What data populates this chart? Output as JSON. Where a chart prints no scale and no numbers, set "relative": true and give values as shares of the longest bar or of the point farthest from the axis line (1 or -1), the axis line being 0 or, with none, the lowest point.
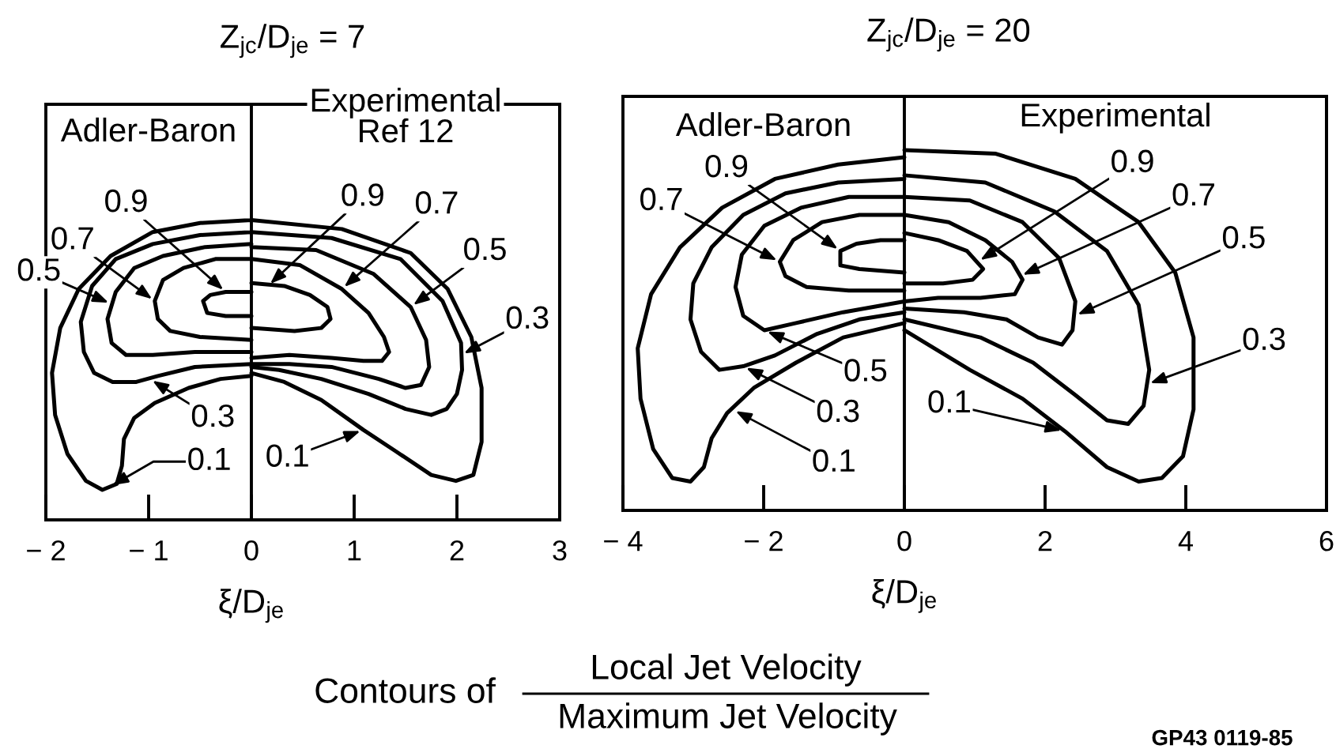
{
  "chart_data": [
    {
      "type": "line",
      "title": "Z$_{jc}$/D$_{je}$ = 7",
      "xlabel": "ξ/D$_{je}$",
      "relative": true,
      "tick_labels": "x",
      "xlim": [
        -2,
        3
      ],
      "xticks": [
        {
          "value": -2,
          "label": "− 2"
        },
        {
          "value": -1,
          "label": "− 1"
        },
        0,
        1,
        2,
        3
      ],
      "series": [
        {
          "color": "#000000",
          "x": [
            0,
            -0.25,
            -0.4,
            -0.47,
            -0.43,
            -0.25,
            0,
            null,
            0,
            0.42,
            0.68,
            0.77,
            0.74,
            0.57,
            0.32,
            0
          ],
          "values": [
            0.76,
            0.76,
            0.75,
            0.73,
            0.69,
            0.68,
            0.68,
            null,
            0.64,
            0.63,
            0.64,
            0.67,
            0.71,
            0.75,
            0.78,
            0.79
          ]
        },
        {
          "color": "#000000",
          "x": [
            0,
            -0.35,
            -0.66,
            -0.86,
            -0.94,
            -0.91,
            -0.79,
            -0.5,
            0,
            null,
            0,
            0.37,
            0.78,
            1.09,
            1.27,
            1.34,
            1.29,
            1.14,
            0.88,
            0.47,
            0
          ],
          "values": [
            0.87,
            0.87,
            0.84,
            0.8,
            0.73,
            0.67,
            0.63,
            0.61,
            0.6,
            null,
            0.54,
            0.55,
            0.54,
            0.53,
            0.53,
            0.56,
            0.61,
            0.69,
            0.77,
            0.85,
            0.87
          ]
        },
        {
          "color": "#000000",
          "x": [
            0,
            -0.45,
            -0.86,
            -1.14,
            -1.32,
            -1.4,
            -1.36,
            -1.22,
            -0.96,
            -0.55,
            0,
            null,
            0,
            0.37,
            0.78,
            1.24,
            1.5,
            1.65,
            1.73,
            1.7,
            1.55,
            1.19,
            0.63,
            0
          ],
          "values": [
            0.92,
            0.91,
            0.88,
            0.84,
            0.76,
            0.67,
            0.59,
            0.55,
            0.55,
            0.56,
            0.56,
            null,
            0.52,
            0.52,
            0.51,
            0.47,
            0.44,
            0.45,
            0.51,
            0.6,
            0.71,
            0.82,
            0.9,
            0.91
          ]
        },
        {
          "color": "#000000",
          "x": [
            0,
            -0.5,
            -0.96,
            -1.32,
            -1.55,
            -1.66,
            -1.63,
            -1.53,
            -1.35,
            -1.12,
            -0.91,
            -0.55,
            0,
            null,
            0,
            0.27,
            0.68,
            1.14,
            1.5,
            1.75,
            1.9,
            2,
            2.05,
            2.04,
            1.86,
            1.45,
            0.78,
            0
          ],
          "values": [
            0.96,
            0.95,
            0.92,
            0.87,
            0.78,
            0.66,
            0.56,
            0.49,
            0.46,
            0.46,
            0.48,
            0.51,
            0.52,
            null,
            0.51,
            0.5,
            0.47,
            0.42,
            0.37,
            0.35,
            0.37,
            0.42,
            0.5,
            0.59,
            0.73,
            0.87,
            0.94,
            0.96
          ]
        },
        {
          "color": "#000000",
          "x": [
            0,
            -0.5,
            -0.96,
            -1.37,
            -1.68,
            -1.86,
            -1.94,
            -1.91,
            -1.79,
            -1.61,
            -1.45,
            -1.31,
            -1.26,
            -1.24,
            -1.14,
            -0.94,
            -0.61,
            -0.3,
            0,
            null,
            0,
            0.32,
            0.68,
            1.09,
            1.4,
            1.75,
            1.99,
            2.16,
            2.24,
            2.24,
            2.14,
            1.91,
            1.55,
            0.88,
            0
          ],
          "values": [
            1,
            0.99,
            0.96,
            0.88,
            0.77,
            0.64,
            0.49,
            0.35,
            0.22,
            0.13,
            0.1,
            0.12,
            0.18,
            0.27,
            0.34,
            0.39,
            0.44,
            0.47,
            0.48,
            null,
            0.49,
            0.46,
            0.4,
            0.3,
            0.23,
            0.15,
            0.13,
            0.15,
            0.26,
            0.44,
            0.61,
            0.77,
            0.89,
            0.97,
            1
          ]
        }
      ],
      "annotations": [
        "Adler-Baron",
        "Experimental\nRef 12",
        {
          "text": "0.9",
          "x": -0.25,
          "y": 0.76
        },
        {
          "text": "0.7",
          "x": -0.94,
          "y": 0.73
        },
        {
          "text": "0.5",
          "x": -1.36,
          "y": 0.72
        },
        {
          "text": "0.3",
          "x": -0.99,
          "y": 0.47
        },
        {
          "text": "0.1",
          "x": -1.38,
          "y": 0.11
        },
        {
          "text": "0.9",
          "x": 0.16,
          "y": 0.78
        },
        {
          "text": "0.7",
          "x": 0.88,
          "y": 0.77
        },
        {
          "text": "0.5",
          "x": 1.55,
          "y": 0.71
        },
        {
          "text": "0.3",
          "x": 2.04,
          "y": 0.55
        },
        {
          "text": "0.1",
          "x": 1.09,
          "y": 0.3
        }
      ]
    },
    {
      "type": "line",
      "title": "Z$_{jc}$/D$_{je}$ = 20",
      "xlabel": "ξ/D$_{je}$",
      "relative": true,
      "tick_labels": "x",
      "xlim": [
        -4,
        6
      ],
      "xticks": [
        {
          "value": -4,
          "label": "− 4"
        },
        {
          "value": -2,
          "label": "− 2"
        },
        0,
        2,
        4,
        6
      ],
      "series": [
        {
          "color": "#000000",
          "x": [
            0,
            -0.34,
            -0.68,
            -0.91,
            -0.91,
            -0.64,
            0,
            null,
            0,
            0.55,
            0.97,
            1.12,
            0.89,
            0.48,
            0
          ],
          "values": [
            0.75,
            0.75,
            0.74,
            0.72,
            0.68,
            0.67,
            0.66,
            null,
            0.63,
            0.63,
            0.64,
            0.67,
            0.72,
            0.75,
            0.77
          ]
        },
        {
          "color": "#000000",
          "x": [
            0,
            -0.64,
            -1.17,
            -1.58,
            -1.77,
            -1.69,
            -1.39,
            -0.79,
            0,
            null,
            0,
            0.48,
            1.08,
            1.57,
            1.68,
            1.53,
            1.15,
            0.63,
            0
          ],
          "values": [
            0.82,
            0.82,
            0.8,
            0.75,
            0.69,
            0.65,
            0.62,
            0.61,
            0.61,
            null,
            0.58,
            0.59,
            0.59,
            0.6,
            0.64,
            0.69,
            0.75,
            0.8,
            0.82
          ]
        },
        {
          "color": "#000000",
          "x": [
            0,
            -0.79,
            -1.47,
            -1.99,
            -2.31,
            -2.4,
            -2.29,
            -1.99,
            -1.54,
            -0.87,
            0,
            null,
            0,
            0.85,
            1.45,
            1.9,
            2.24,
            2.39,
            2.43,
            2.2,
            1.68,
            0.93,
            0
          ],
          "values": [
            0.87,
            0.87,
            0.84,
            0.79,
            0.71,
            0.62,
            0.54,
            0.5,
            0.52,
            0.55,
            0.58,
            null,
            0.56,
            0.55,
            0.53,
            0.48,
            0.46,
            0.5,
            0.58,
            0.7,
            0.8,
            0.86,
            0.87
          ]
        },
        {
          "color": "#000000",
          "x": [
            0,
            -0.94,
            -1.69,
            -2.29,
            -2.74,
            -3,
            -3.04,
            -2.89,
            -2.63,
            -2.29,
            -1.84,
            -1.24,
            -0.64,
            0,
            null,
            0,
            1.08,
            1.83,
            2.43,
            2.88,
            3.18,
            3.4,
            3.48,
            3.33,
            2.88,
            2.13,
            1.15,
            0
          ],
          "values": [
            0.92,
            0.91,
            0.88,
            0.82,
            0.73,
            0.63,
            0.53,
            0.44,
            0.39,
            0.4,
            0.43,
            0.49,
            0.53,
            0.55,
            null,
            0.53,
            0.48,
            0.41,
            0.32,
            0.25,
            0.24,
            0.29,
            0.39,
            0.57,
            0.72,
            0.83,
            0.91,
            0.93
          ]
        },
        {
          "color": "#000000",
          "x": [
            0,
            -0.94,
            -1.84,
            -2.59,
            -3.19,
            -3.6,
            -3.79,
            -3.75,
            -3.57,
            -3.3,
            -3.04,
            -2.85,
            -2.74,
            -2.52,
            -2.14,
            -1.54,
            -0.87,
            0,
            null,
            0,
            0.93,
            1.68,
            2.28,
            2.88,
            3.33,
            3.66,
            3.96,
            4.11,
            4.11,
            3.85,
            3.33,
            2.43,
            1.3,
            0
          ],
          "values": [
            0.98,
            0.96,
            0.92,
            0.84,
            0.73,
            0.6,
            0.45,
            0.31,
            0.17,
            0.09,
            0.08,
            0.12,
            0.2,
            0.27,
            0.34,
            0.41,
            0.48,
            0.52,
            null,
            0.5,
            0.39,
            0.31,
            0.22,
            0.12,
            0.08,
            0.09,
            0.15,
            0.28,
            0.48,
            0.66,
            0.8,
            0.92,
            0.99,
            1
          ]
        }
      ],
      "annotations": [
        "Adler-Baron",
        "Experimental",
        {
          "text": "0.9",
          "x": -0.91,
          "y": 0.72
        },
        {
          "text": "0.7",
          "x": -1.77,
          "y": 0.69
        },
        {
          "text": "0.5",
          "x": -1.99,
          "y": 0.5
        },
        {
          "text": "0.3",
          "x": -2.29,
          "y": 0.4
        },
        {
          "text": "0.1",
          "x": -2.44,
          "y": 0.28
        },
        {
          "text": "0.9",
          "x": 1.04,
          "y": 0.69
        },
        {
          "text": "0.7",
          "x": 1.64,
          "y": 0.65
        },
        {
          "text": "0.5",
          "x": 2.42,
          "y": 0.54
        },
        {
          "text": "0.3",
          "x": 3.45,
          "y": 0.35
        },
        {
          "text": "0.1",
          "x": 2.28,
          "y": 0.22
        }
      ]
    },
    {
      "type": "other",
      "annotations": [
        "Contours of",
        "Local Jet Velocity",
        "Maximum Jet Velocity",
        "GP43 0119-85"
      ]
    }
  ]
}
